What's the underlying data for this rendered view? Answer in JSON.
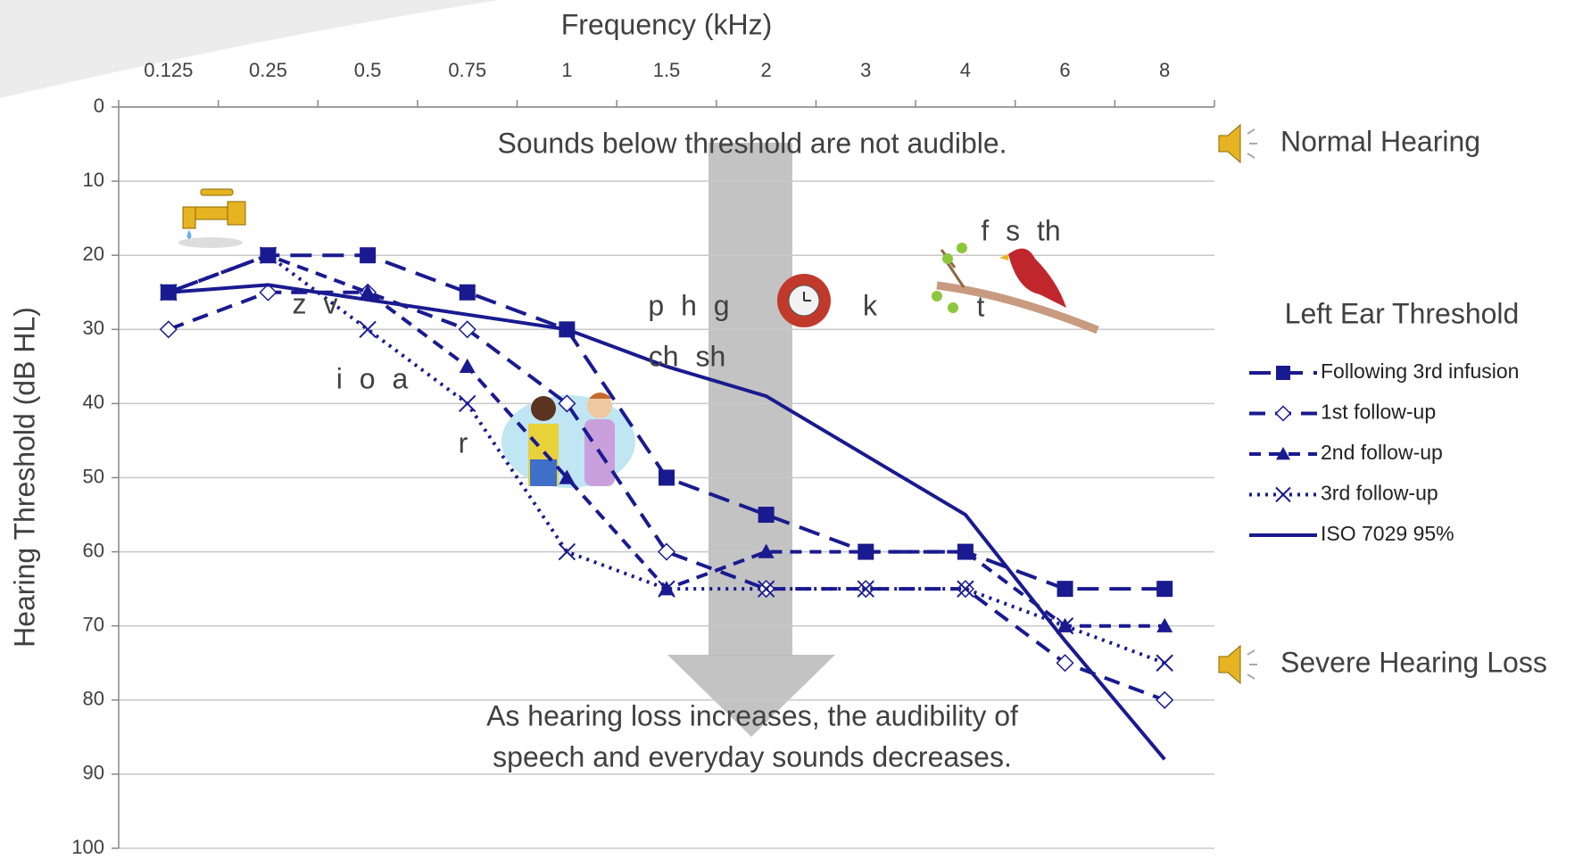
{
  "chart_data": {
    "type": "line",
    "x_axis_title": "Frequency (kHz)",
    "y_axis_title": "Hearing Threshold (dB HL)",
    "categories": [
      "0.125",
      "0.25",
      "0.5",
      "0.75",
      "1",
      "1.5",
      "2",
      "3",
      "4",
      "6",
      "8"
    ],
    "ylim": [
      0,
      100
    ],
    "y_inverted": true,
    "yticks": [
      0,
      10,
      20,
      30,
      40,
      50,
      60,
      70,
      80,
      90,
      100
    ],
    "grid": true,
    "legend_title": "Left Ear Threshold",
    "legend_position": "right",
    "series": [
      {
        "name": "Following 3rd infusion",
        "color": "#1a1a90",
        "line_style": "long-dash",
        "marker": "square",
        "values": [
          25,
          20,
          20,
          25,
          30,
          50,
          55,
          60,
          60,
          65,
          65
        ]
      },
      {
        "name": "1st follow-up",
        "color": "#1a1a90",
        "line_style": "dash",
        "marker": "diamond",
        "values": [
          30,
          25,
          25,
          30,
          40,
          60,
          65,
          65,
          65,
          75,
          80
        ]
      },
      {
        "name": "2nd follow-up",
        "color": "#1a1a90",
        "line_style": "short-dash",
        "marker": "triangle",
        "values": [
          25,
          20,
          25,
          35,
          50,
          65,
          60,
          60,
          60,
          70,
          70
        ]
      },
      {
        "name": "3rd follow-up",
        "color": "#1a1a90",
        "line_style": "dotted",
        "marker": "x",
        "values": [
          25,
          20,
          30,
          40,
          60,
          65,
          65,
          65,
          65,
          70,
          75
        ]
      },
      {
        "name": "ISO 7029 95%",
        "color": "#1a1a90",
        "line_style": "solid",
        "marker": "none",
        "values": [
          25,
          24,
          26,
          28,
          30,
          35,
          39,
          47,
          55,
          72,
          88
        ]
      }
    ],
    "annotations": [
      "Sounds below threshold are not audible.",
      "As hearing loss increases, the audibility of",
      "speech and everyday sounds decreases.",
      "Normal Hearing",
      "Severe Hearing Loss"
    ],
    "speech_sounds": [
      "z v",
      "i o a",
      "r",
      "p h g",
      "ch sh",
      "k",
      "f s th",
      "t"
    ]
  }
}
